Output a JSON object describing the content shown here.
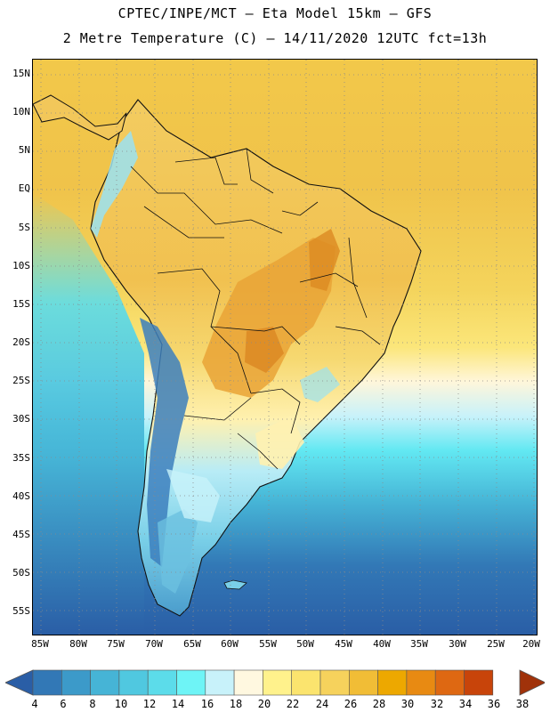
{
  "header": {
    "line1": "CPTEC/INPE/MCT –  Eta Model 15km – GFS",
    "line2": "2 Metre Temperature (C) – 14/11/2020 12UTC fct=13h"
  },
  "map": {
    "lat_labels": [
      "15N",
      "10N",
      "5N",
      "EQ",
      "5S",
      "10S",
      "15S",
      "20S",
      "25S",
      "30S",
      "35S",
      "40S",
      "45S",
      "50S",
      "55S"
    ],
    "lon_labels": [
      "85W",
      "80W",
      "75W",
      "70W",
      "65W",
      "60W",
      "55W",
      "50W",
      "45W",
      "40W",
      "35W",
      "30W",
      "25W",
      "20W"
    ]
  },
  "colorbar": {
    "colors": [
      "#2a5ea6",
      "#3278b6",
      "#3c9ac9",
      "#46b4d6",
      "#50c8e0",
      "#5cdcea",
      "#6ef4f6",
      "#c8f2fa",
      "#fff8e0",
      "#fff28c",
      "#fbe46e",
      "#f6d25c",
      "#f1bd36",
      "#eda800",
      "#e88a12",
      "#de6812",
      "#c8440a",
      "#b0320a"
    ],
    "labels": [
      "4",
      "6",
      "8",
      "10",
      "12",
      "14",
      "16",
      "18",
      "20",
      "22",
      "24",
      "26",
      "28",
      "30",
      "32",
      "34",
      "36",
      "38"
    ]
  }
}
